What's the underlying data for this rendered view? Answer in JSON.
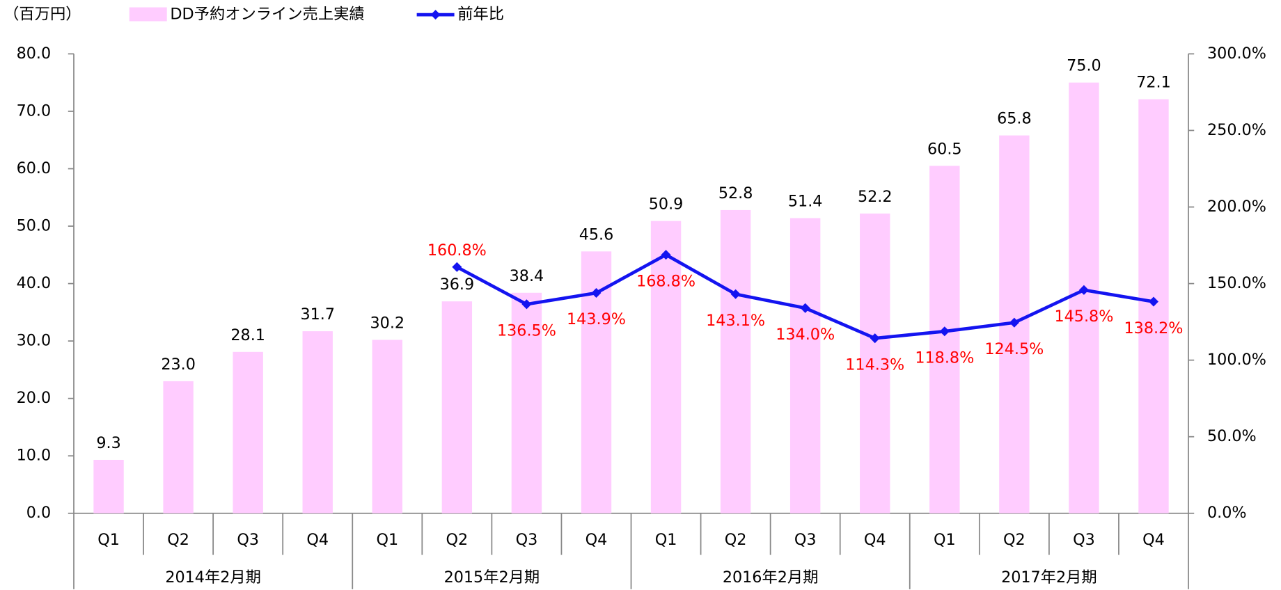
{
  "chart_data": {
    "type": "bar",
    "y_axis_label": "（百万円）",
    "categories": [
      "Q1",
      "Q2",
      "Q3",
      "Q4",
      "Q1",
      "Q2",
      "Q3",
      "Q4",
      "Q1",
      "Q2",
      "Q3",
      "Q4",
      "Q1",
      "Q2",
      "Q3",
      "Q4"
    ],
    "groups": [
      "2014年2月期",
      "2015年2月期",
      "2016年2月期",
      "2017年2月期"
    ],
    "series": [
      {
        "name": "DD予約オンライン売上実績",
        "type": "bar",
        "color": "#ffccff",
        "values": [
          9.3,
          23.0,
          28.1,
          31.7,
          30.2,
          36.9,
          38.4,
          45.6,
          50.9,
          52.8,
          51.4,
          52.2,
          60.5,
          65.8,
          75.0,
          72.1
        ],
        "value_labels": [
          "9.3",
          "23.0",
          "28.1",
          "31.7",
          "30.2",
          "36.9",
          "38.4",
          "45.6",
          "50.9",
          "52.8",
          "51.4",
          "52.2",
          "60.5",
          "65.8",
          "75.0",
          "72.1"
        ]
      },
      {
        "name": "前年比",
        "type": "line",
        "axis": "y2",
        "color": "#1414f0",
        "label_color": "#ff0000",
        "values": [
          null,
          null,
          null,
          null,
          null,
          160.8,
          136.5,
          143.9,
          168.8,
          143.1,
          134.0,
          114.3,
          118.8,
          124.5,
          145.8,
          138.2
        ],
        "value_labels": [
          null,
          null,
          null,
          null,
          null,
          "160.8%",
          "136.5%",
          "143.9%",
          "168.8%",
          "143.1%",
          "134.0%",
          "114.3%",
          "118.8%",
          "124.5%",
          "145.8%",
          "138.2%"
        ]
      }
    ],
    "ylim": [
      0,
      80
    ],
    "yticks": [
      {
        "value": 0,
        "label": "0.0"
      },
      {
        "value": 10,
        "label": "10.0"
      },
      {
        "value": 20,
        "label": "20.0"
      },
      {
        "value": 30,
        "label": "30.0"
      },
      {
        "value": 40,
        "label": "40.0"
      },
      {
        "value": 50,
        "label": "50.0"
      },
      {
        "value": 60,
        "label": "60.0"
      },
      {
        "value": 70,
        "label": "70.0"
      },
      {
        "value": 80,
        "label": "80.0"
      }
    ],
    "y2lim": [
      0,
      300
    ],
    "y2ticks": [
      {
        "value": 0,
        "label": "0.0%"
      },
      {
        "value": 50,
        "label": "50.0%"
      },
      {
        "value": 100,
        "label": "100.0%"
      },
      {
        "value": 150,
        "label": "150.0%"
      },
      {
        "value": 200,
        "label": "200.0%"
      },
      {
        "value": 250,
        "label": "250.0%"
      },
      {
        "value": 300,
        "label": "300.0%"
      }
    ]
  }
}
